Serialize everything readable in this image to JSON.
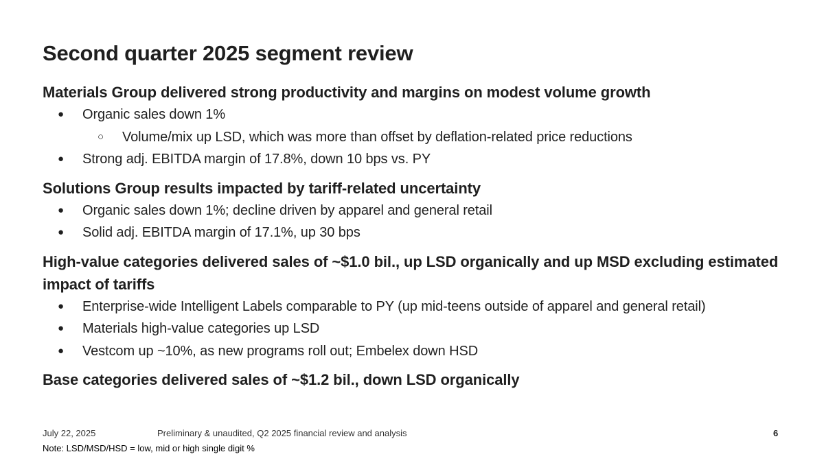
{
  "slide": {
    "title": "Second quarter 2025 segment review",
    "sections": [
      {
        "heading": "Materials Group delivered strong productivity and margins on modest volume growth",
        "bullets": [
          {
            "level": 1,
            "text": "Organic sales down 1%"
          },
          {
            "level": 2,
            "text": "Volume/mix up LSD, which was more than offset by deflation-related price reductions"
          },
          {
            "level": 1,
            "text": "Strong adj. EBITDA margin of 17.8%, down 10 bps vs. PY"
          }
        ]
      },
      {
        "heading": "Solutions Group results impacted by tariff-related uncertainty",
        "bullets": [
          {
            "level": 1,
            "text": "Organic sales down 1%; decline driven by apparel and general retail"
          },
          {
            "level": 1,
            "text": "Solid adj. EBITDA margin of 17.1%, up 30 bps"
          }
        ]
      },
      {
        "heading": "High-value categories delivered sales of ~$1.0 bil., up LSD organically and up MSD excluding estimated impact of tariffs",
        "bullets": [
          {
            "level": 1,
            "text": "Enterprise-wide Intelligent Labels comparable to PY (up mid-teens outside of apparel and general retail)"
          },
          {
            "level": 1,
            "text": "Materials high-value categories up LSD"
          },
          {
            "level": 1,
            "text": "Vestcom up ~10%, as new programs roll out; Embelex down HSD"
          }
        ]
      },
      {
        "heading": "Base categories delivered sales of ~$1.2 bil., down LSD organically",
        "bullets": []
      }
    ]
  },
  "footer": {
    "date": "July 22, 2025",
    "text": "Preliminary & unaudited, Q2 2025 financial review and analysis",
    "page_number": "6",
    "note": "Note: LSD/MSD/HSD = low, mid or high single digit %"
  }
}
